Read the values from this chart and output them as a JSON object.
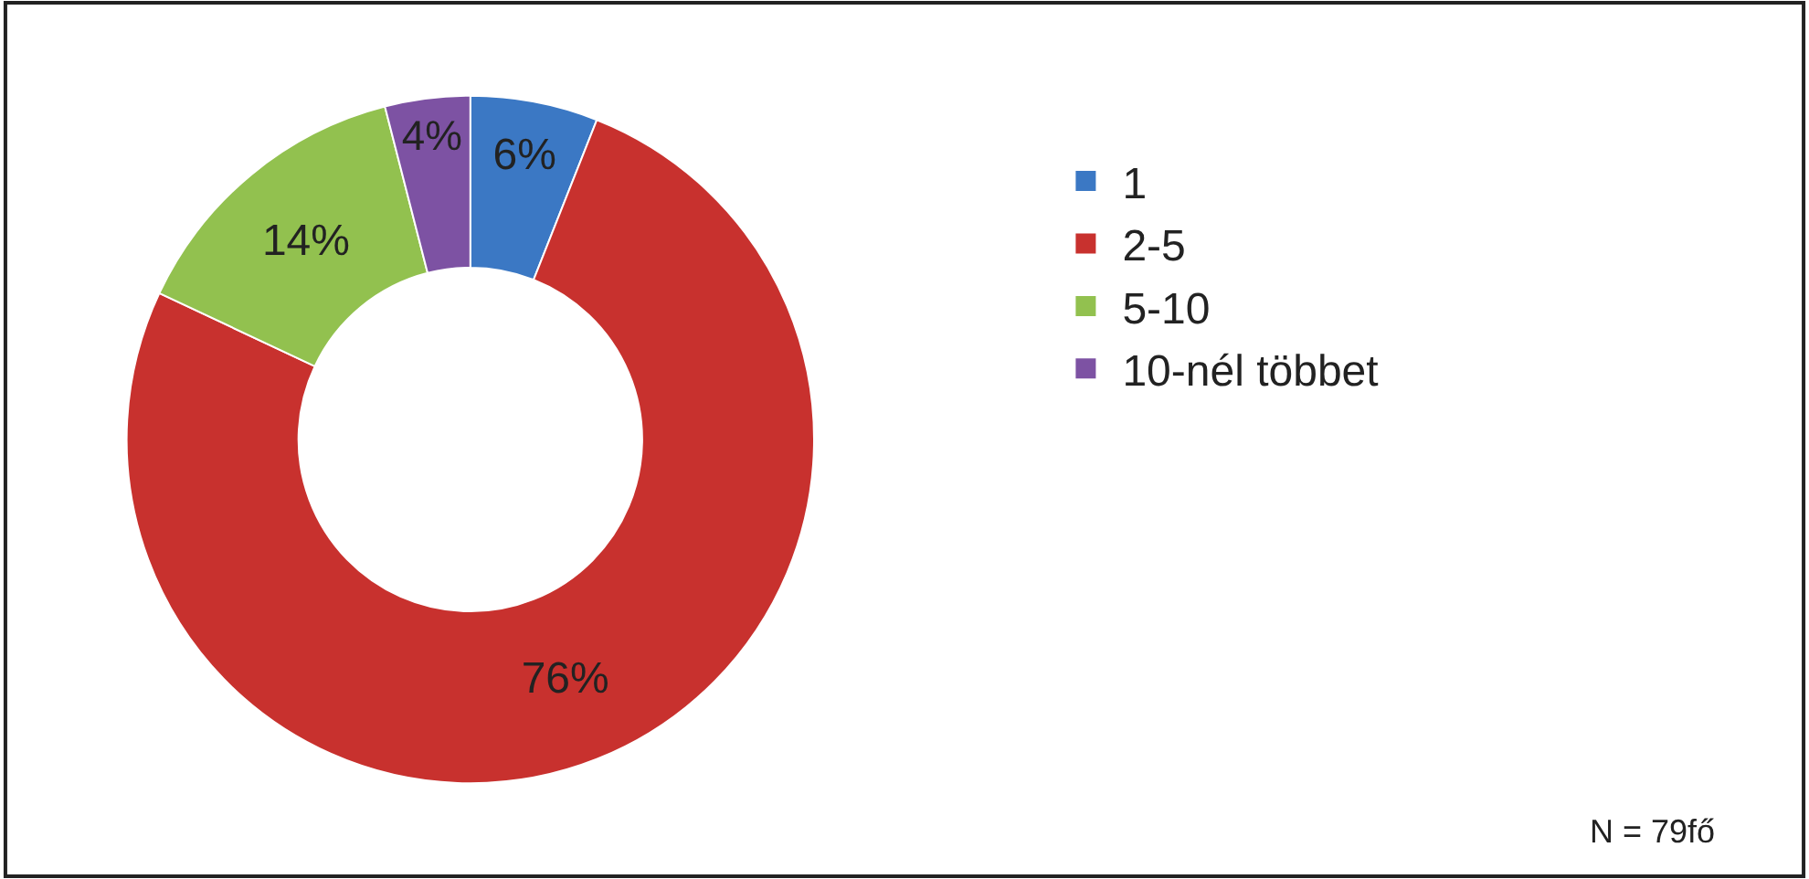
{
  "chart_data": {
    "type": "donut",
    "categories": [
      "1",
      "2-5",
      "5-10",
      "10-nél többet"
    ],
    "values": [
      6,
      76,
      14,
      4
    ],
    "colors": [
      "#3b78c4",
      "#c8312e",
      "#92c14f",
      "#7d52a3"
    ],
    "value_labels": [
      "6%",
      "76%",
      "14%",
      "4%"
    ],
    "legend": "right",
    "annotations": [
      "N = 79fő"
    ]
  }
}
